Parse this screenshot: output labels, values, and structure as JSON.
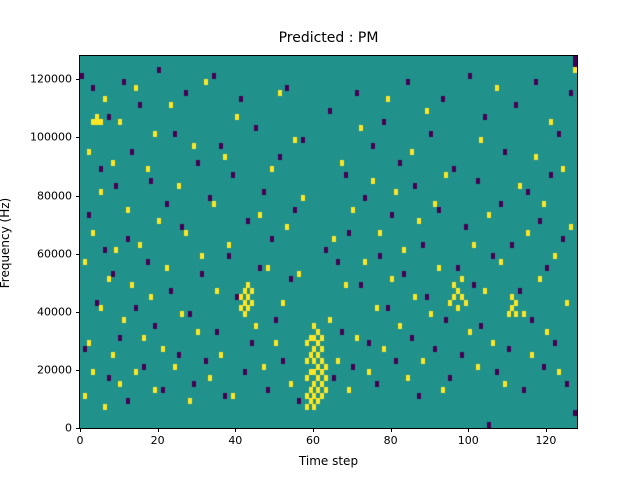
{
  "figure": {
    "title": "Predicted : PM",
    "xlabel": "Time step",
    "ylabel": "Frequency (Hz)"
  },
  "chart_data": {
    "type": "heatmap",
    "title": "Predicted : PM",
    "xlabel": "Time step",
    "ylabel": "Frequency (Hz)",
    "x_range": [
      0,
      128
    ],
    "y_range": [
      0,
      128000
    ],
    "grid": {
      "cols": 128,
      "rows": 64,
      "freq_bin_hz": 2000,
      "gridlines": false
    },
    "x_ticks": [
      0,
      20,
      40,
      60,
      80,
      100,
      120
    ],
    "y_ticks": [
      0,
      20000,
      40000,
      60000,
      80000,
      100000,
      120000
    ],
    "legend": "none",
    "colors": {
      "background": "#21918c",
      "high": "#fde725",
      "low": "#440154"
    },
    "yellow_cells": [
      [
        58,
        3
      ],
      [
        58,
        5
      ],
      [
        58,
        8
      ],
      [
        58,
        11
      ],
      [
        58,
        14
      ],
      [
        59,
        4
      ],
      [
        59,
        6
      ],
      [
        59,
        9
      ],
      [
        59,
        12
      ],
      [
        59,
        15
      ],
      [
        60,
        3
      ],
      [
        60,
        5
      ],
      [
        60,
        7
      ],
      [
        60,
        9
      ],
      [
        60,
        11
      ],
      [
        60,
        13
      ],
      [
        60,
        15
      ],
      [
        60,
        17
      ],
      [
        61,
        4
      ],
      [
        61,
        6
      ],
      [
        61,
        8
      ],
      [
        61,
        10
      ],
      [
        61,
        12
      ],
      [
        61,
        14
      ],
      [
        61,
        16
      ],
      [
        62,
        5
      ],
      [
        62,
        7
      ],
      [
        62,
        9
      ],
      [
        62,
        11
      ],
      [
        62,
        13
      ],
      [
        62,
        15
      ],
      [
        63,
        6
      ],
      [
        63,
        8
      ],
      [
        63,
        10
      ],
      [
        41,
        20
      ],
      [
        41,
        22
      ],
      [
        42,
        19
      ],
      [
        42,
        21
      ],
      [
        42,
        23
      ],
      [
        43,
        20
      ],
      [
        43,
        22
      ],
      [
        43,
        24
      ],
      [
        44,
        21
      ],
      [
        44,
        23
      ],
      [
        95,
        21
      ],
      [
        96,
        22
      ],
      [
        96,
        24
      ],
      [
        97,
        20
      ],
      [
        97,
        23
      ],
      [
        98,
        22
      ],
      [
        98,
        25
      ],
      [
        99,
        21
      ],
      [
        110,
        19
      ],
      [
        111,
        20
      ],
      [
        111,
        22
      ],
      [
        112,
        19
      ],
      [
        112,
        21
      ],
      [
        3,
        52
      ],
      [
        4,
        52
      ],
      [
        4,
        53
      ],
      [
        5,
        52
      ],
      [
        1,
        5
      ],
      [
        1,
        28
      ],
      [
        2,
        14
      ],
      [
        2,
        47
      ],
      [
        3,
        9
      ],
      [
        3,
        33
      ],
      [
        5,
        20
      ],
      [
        5,
        40
      ],
      [
        6,
        3
      ],
      [
        6,
        56
      ],
      [
        7,
        25
      ],
      [
        8,
        12
      ],
      [
        8,
        45
      ],
      [
        9,
        30
      ],
      [
        10,
        7
      ],
      [
        10,
        52
      ],
      [
        11,
        18
      ],
      [
        12,
        37
      ],
      [
        13,
        24
      ],
      [
        14,
        9
      ],
      [
        14,
        58
      ],
      [
        15,
        31
      ],
      [
        16,
        15
      ],
      [
        17,
        44
      ],
      [
        18,
        22
      ],
      [
        19,
        6
      ],
      [
        19,
        50
      ],
      [
        20,
        35
      ],
      [
        21,
        13
      ],
      [
        22,
        27
      ],
      [
        23,
        55
      ],
      [
        24,
        10
      ],
      [
        25,
        41
      ],
      [
        26,
        19
      ],
      [
        27,
        33
      ],
      [
        28,
        4
      ],
      [
        29,
        48
      ],
      [
        30,
        16
      ],
      [
        31,
        29
      ],
      [
        32,
        59
      ],
      [
        33,
        8
      ],
      [
        34,
        38
      ],
      [
        35,
        23
      ],
      [
        36,
        12
      ],
      [
        37,
        46
      ],
      [
        38,
        31
      ],
      [
        39,
        5
      ],
      [
        40,
        53
      ],
      [
        45,
        17
      ],
      [
        46,
        36
      ],
      [
        47,
        10
      ],
      [
        48,
        27
      ],
      [
        49,
        44
      ],
      [
        50,
        14
      ],
      [
        51,
        57
      ],
      [
        52,
        21
      ],
      [
        53,
        34
      ],
      [
        54,
        7
      ],
      [
        55,
        49
      ],
      [
        56,
        26
      ],
      [
        57,
        39
      ],
      [
        64,
        18
      ],
      [
        65,
        32
      ],
      [
        66,
        11
      ],
      [
        67,
        45
      ],
      [
        68,
        24
      ],
      [
        69,
        6
      ],
      [
        70,
        37
      ],
      [
        71,
        15
      ],
      [
        72,
        51
      ],
      [
        73,
        28
      ],
      [
        74,
        9
      ],
      [
        75,
        42
      ],
      [
        76,
        20
      ],
      [
        77,
        33
      ],
      [
        78,
        13
      ],
      [
        79,
        56
      ],
      [
        80,
        25
      ],
      [
        81,
        40
      ],
      [
        82,
        17
      ],
      [
        83,
        30
      ],
      [
        84,
        8
      ],
      [
        85,
        47
      ],
      [
        86,
        22
      ],
      [
        87,
        35
      ],
      [
        88,
        11
      ],
      [
        89,
        54
      ],
      [
        90,
        19
      ],
      [
        91,
        38
      ],
      [
        92,
        27
      ],
      [
        93,
        6
      ],
      [
        94,
        43
      ],
      [
        100,
        16
      ],
      [
        101,
        31
      ],
      [
        102,
        10
      ],
      [
        103,
        49
      ],
      [
        104,
        23
      ],
      [
        105,
        36
      ],
      [
        106,
        14
      ],
      [
        107,
        58
      ],
      [
        108,
        28
      ],
      [
        109,
        7
      ],
      [
        113,
        41
      ],
      [
        114,
        19
      ],
      [
        115,
        33
      ],
      [
        116,
        12
      ],
      [
        117,
        46
      ],
      [
        118,
        25
      ],
      [
        119,
        38
      ],
      [
        120,
        16
      ],
      [
        121,
        52
      ],
      [
        122,
        29
      ],
      [
        123,
        9
      ],
      [
        124,
        44
      ],
      [
        125,
        21
      ],
      [
        126,
        34
      ],
      [
        127,
        61
      ]
    ],
    "purple_cells": [
      [
        0,
        60
      ],
      [
        1,
        13
      ],
      [
        2,
        36
      ],
      [
        3,
        58
      ],
      [
        4,
        21
      ],
      [
        5,
        44
      ],
      [
        6,
        30
      ],
      [
        7,
        8
      ],
      [
        7,
        53
      ],
      [
        8,
        26
      ],
      [
        9,
        41
      ],
      [
        10,
        15
      ],
      [
        11,
        59
      ],
      [
        12,
        4
      ],
      [
        12,
        32
      ],
      [
        13,
        47
      ],
      [
        14,
        20
      ],
      [
        15,
        55
      ],
      [
        16,
        10
      ],
      [
        17,
        28
      ],
      [
        18,
        42
      ],
      [
        19,
        17
      ],
      [
        20,
        61
      ],
      [
        21,
        6
      ],
      [
        22,
        38
      ],
      [
        23,
        23
      ],
      [
        24,
        50
      ],
      [
        25,
        12
      ],
      [
        26,
        34
      ],
      [
        27,
        57
      ],
      [
        28,
        19
      ],
      [
        29,
        7
      ],
      [
        30,
        45
      ],
      [
        31,
        26
      ],
      [
        32,
        11
      ],
      [
        33,
        39
      ],
      [
        34,
        60
      ],
      [
        35,
        16
      ],
      [
        36,
        48
      ],
      [
        37,
        5
      ],
      [
        38,
        29
      ],
      [
        39,
        43
      ],
      [
        40,
        22
      ],
      [
        41,
        56
      ],
      [
        42,
        9
      ],
      [
        43,
        35
      ],
      [
        44,
        14
      ],
      [
        45,
        51
      ],
      [
        46,
        27
      ],
      [
        47,
        40
      ],
      [
        48,
        6
      ],
      [
        49,
        32
      ],
      [
        50,
        18
      ],
      [
        51,
        46
      ],
      [
        52,
        11
      ],
      [
        53,
        58
      ],
      [
        54,
        25
      ],
      [
        55,
        37
      ],
      [
        56,
        4
      ],
      [
        57,
        49
      ],
      [
        63,
        30
      ],
      [
        64,
        54
      ],
      [
        65,
        8
      ],
      [
        66,
        28
      ],
      [
        67,
        16
      ],
      [
        68,
        43
      ],
      [
        69,
        33
      ],
      [
        70,
        10
      ],
      [
        71,
        57
      ],
      [
        72,
        24
      ],
      [
        73,
        39
      ],
      [
        74,
        14
      ],
      [
        75,
        48
      ],
      [
        76,
        7
      ],
      [
        77,
        29
      ],
      [
        78,
        52
      ],
      [
        79,
        20
      ],
      [
        80,
        36
      ],
      [
        81,
        11
      ],
      [
        82,
        45
      ],
      [
        83,
        26
      ],
      [
        84,
        59
      ],
      [
        85,
        15
      ],
      [
        86,
        41
      ],
      [
        87,
        5
      ],
      [
        88,
        31
      ],
      [
        89,
        22
      ],
      [
        90,
        50
      ],
      [
        91,
        13
      ],
      [
        92,
        37
      ],
      [
        93,
        56
      ],
      [
        94,
        18
      ],
      [
        95,
        8
      ],
      [
        96,
        44
      ],
      [
        97,
        27
      ],
      [
        98,
        12
      ],
      [
        99,
        34
      ],
      [
        100,
        60
      ],
      [
        101,
        24
      ],
      [
        102,
        42
      ],
      [
        103,
        17
      ],
      [
        104,
        53
      ],
      [
        105,
        0
      ],
      [
        106,
        29
      ],
      [
        107,
        9
      ],
      [
        108,
        38
      ],
      [
        109,
        47
      ],
      [
        110,
        13
      ],
      [
        111,
        31
      ],
      [
        112,
        55
      ],
      [
        113,
        23
      ],
      [
        114,
        6
      ],
      [
        115,
        40
      ],
      [
        116,
        18
      ],
      [
        117,
        59
      ],
      [
        118,
        35
      ],
      [
        119,
        10
      ],
      [
        120,
        27
      ],
      [
        121,
        43
      ],
      [
        122,
        14
      ],
      [
        123,
        50
      ],
      [
        124,
        32
      ],
      [
        125,
        7
      ],
      [
        126,
        57
      ],
      [
        127,
        62
      ],
      [
        127,
        63
      ],
      [
        127,
        2
      ]
    ]
  }
}
